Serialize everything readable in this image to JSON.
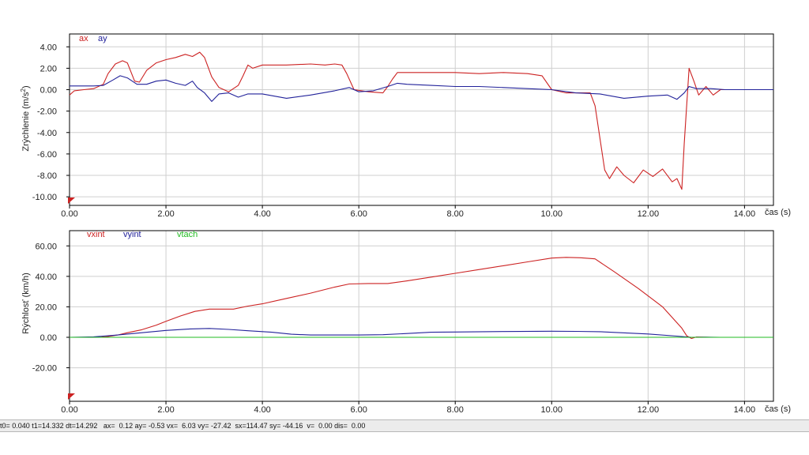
{
  "chart_data": [
    {
      "type": "line",
      "ylabel": "Zrýchlenie (m/s",
      "ylabel_sup": "2",
      "ylabel_close": ")",
      "xlabel": "čas (s)",
      "xlim": [
        0,
        14.6
      ],
      "ylim": [
        -10.8,
        5.2
      ],
      "xticks": [
        "0.00",
        "2.00",
        "4.00",
        "6.00",
        "8.00",
        "10.00",
        "12.00",
        "14.00"
      ],
      "xtick_values": [
        0,
        2,
        4,
        6,
        8,
        10,
        12,
        14
      ],
      "yticks": [
        "4.00",
        "2.00",
        "0.00",
        "-2.00",
        "-4.00",
        "-6.00",
        "-8.00",
        "-10.00"
      ],
      "ytick_values": [
        4,
        2,
        0,
        -2,
        -4,
        -6,
        -8,
        -10
      ],
      "grid": true,
      "series": [
        {
          "name": "ax",
          "color": "#cc2222",
          "x": [
            0,
            0.1,
            0.3,
            0.5,
            0.7,
            0.8,
            0.95,
            1.1,
            1.2,
            1.35,
            1.45,
            1.6,
            1.8,
            2.0,
            2.2,
            2.4,
            2.55,
            2.7,
            2.8,
            2.95,
            3.1,
            3.3,
            3.5,
            3.6,
            3.7,
            3.8,
            4.0,
            4.5,
            5.0,
            5.3,
            5.5,
            5.65,
            5.75,
            5.9,
            6.2,
            6.5,
            6.6,
            6.7,
            6.8,
            7.0,
            7.5,
            8.0,
            8.5,
            9.0,
            9.5,
            9.8,
            10.0,
            10.3,
            10.8,
            10.9,
            11.0,
            11.1,
            11.2,
            11.35,
            11.5,
            11.7,
            11.9,
            12.1,
            12.3,
            12.5,
            12.6,
            12.7,
            12.75,
            12.85,
            12.95,
            13.05,
            13.2,
            13.35,
            13.5,
            14.0,
            14.6
          ],
          "y": [
            -0.5,
            -0.1,
            0,
            0.1,
            0.5,
            1.5,
            2.4,
            2.7,
            2.5,
            0.8,
            0.7,
            1.8,
            2.5,
            2.8,
            3.0,
            3.3,
            3.1,
            3.5,
            3.0,
            1.2,
            0.2,
            -0.2,
            0.4,
            1.3,
            2.3,
            2.0,
            2.3,
            2.3,
            2.4,
            2.3,
            2.4,
            2.3,
            1.5,
            0,
            -0.2,
            -0.3,
            0.3,
            1.0,
            1.6,
            1.6,
            1.6,
            1.6,
            1.5,
            1.6,
            1.5,
            1.3,
            0,
            -0.3,
            -0.3,
            -1.5,
            -4.5,
            -7.5,
            -8.3,
            -7.2,
            -8.0,
            -8.7,
            -7.5,
            -8.1,
            -7.4,
            -8.6,
            -8.3,
            -9.3,
            -5.0,
            2.0,
            0.8,
            -0.5,
            0.3,
            -0.5,
            0,
            0,
            0
          ]
        },
        {
          "name": "ay",
          "color": "#22229a",
          "x": [
            0,
            0.5,
            0.7,
            0.9,
            1.05,
            1.2,
            1.4,
            1.6,
            1.8,
            2.0,
            2.2,
            2.4,
            2.55,
            2.65,
            2.8,
            2.95,
            3.1,
            3.3,
            3.5,
            3.7,
            4.0,
            4.5,
            5.0,
            5.5,
            5.8,
            6.0,
            6.3,
            6.6,
            6.8,
            7.0,
            7.5,
            8.0,
            8.5,
            9.0,
            9.5,
            10.0,
            10.5,
            11.0,
            11.5,
            12.0,
            12.4,
            12.6,
            12.75,
            12.85,
            13.0,
            13.3,
            13.6,
            14.0,
            14.6
          ],
          "y": [
            0.35,
            0.35,
            0.4,
            0.9,
            1.3,
            1.1,
            0.5,
            0.5,
            0.8,
            0.9,
            0.6,
            0.4,
            0.8,
            0.2,
            -0.3,
            -1.1,
            -0.4,
            -0.3,
            -0.7,
            -0.4,
            -0.4,
            -0.8,
            -0.5,
            -0.1,
            0.2,
            -0.2,
            -0.1,
            0.3,
            0.6,
            0.5,
            0.4,
            0.3,
            0.3,
            0.2,
            0.1,
            0,
            -0.3,
            -0.4,
            -0.8,
            -0.6,
            -0.5,
            -0.9,
            -0.3,
            0.3,
            0.1,
            0.1,
            0,
            0,
            0
          ]
        }
      ]
    },
    {
      "type": "line",
      "ylabel": "Rýchlosť (km/h)",
      "xlabel": "čas (s)",
      "xlim": [
        0,
        14.6
      ],
      "ylim": [
        -42,
        70
      ],
      "xticks": [
        "0.00",
        "2.00",
        "4.00",
        "6.00",
        "8.00",
        "10.00",
        "12.00",
        "14.00"
      ],
      "xtick_values": [
        0,
        2,
        4,
        6,
        8,
        10,
        12,
        14
      ],
      "yticks": [
        "60.00",
        "40.00",
        "20.00",
        "0.00",
        "-20.00"
      ],
      "ytick_values": [
        60,
        40,
        20,
        0,
        -20
      ],
      "grid": true,
      "series": [
        {
          "name": "vxint",
          "color": "#cc2222",
          "x": [
            0,
            0.6,
            0.8,
            1.0,
            1.2,
            1.5,
            1.8,
            2.0,
            2.3,
            2.6,
            2.9,
            3.1,
            3.4,
            3.7,
            4.0,
            4.5,
            5.0,
            5.5,
            5.8,
            6.2,
            6.6,
            7.0,
            7.5,
            8.0,
            8.5,
            9.0,
            9.5,
            10.0,
            10.3,
            10.6,
            10.9,
            11.3,
            11.8,
            12.3,
            12.7,
            12.8,
            12.9,
            13.0,
            13.3,
            13.5
          ],
          "y": [
            0,
            0,
            0.5,
            1.5,
            3,
            5,
            8,
            10.5,
            14,
            17,
            18.5,
            18.5,
            18.5,
            20.5,
            22,
            25.5,
            29,
            33,
            35,
            35.3,
            35.3,
            37,
            39.5,
            42,
            44.5,
            47,
            49.5,
            52,
            52.5,
            52.2,
            51.5,
            43,
            32,
            20,
            6,
            1,
            -0.8,
            0.2,
            0,
            0
          ]
        },
        {
          "name": "vyint",
          "color": "#22229a",
          "x": [
            0,
            0.5,
            1.0,
            1.5,
            2.0,
            2.5,
            2.9,
            3.3,
            3.7,
            4.2,
            4.6,
            5.0,
            6.0,
            6.5,
            7.0,
            7.5,
            8.0,
            9.0,
            10.0,
            10.5,
            11.0,
            12.0,
            12.6,
            12.9,
            13.2,
            13.5
          ],
          "y": [
            0,
            0.3,
            1.5,
            3,
            4.5,
            5.5,
            5.8,
            5.2,
            4.3,
            3.3,
            2,
            1.5,
            1.5,
            1.7,
            2.5,
            3.3,
            3.5,
            3.8,
            4,
            3.9,
            3.7,
            2.2,
            0.8,
            0,
            0.1,
            0
          ]
        },
        {
          "name": "vtach",
          "color": "#22bb22",
          "x": [
            0,
            14.6
          ],
          "y": [
            0,
            0
          ]
        }
      ]
    }
  ],
  "status_text": "t0= 0.040 t1=14.332 dt=14.292   ax=  0.12 ay= -0.53 vx=  6.03 vy= -27.42  sx=114.47 sy= -44.16  v=  0.00 dis=  0.00",
  "colors": {
    "grid": "#cfcfcf",
    "frame": "#000000",
    "marker": "#cc2222"
  }
}
